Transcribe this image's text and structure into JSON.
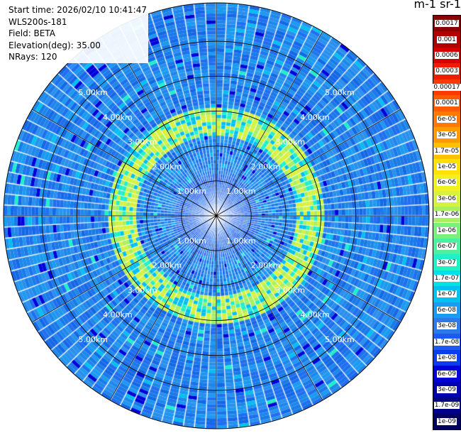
{
  "info": {
    "start_time": "Start time: 2026/02/10 10:41:47",
    "instrument": "WLS200s-181",
    "field": "Field: BETA",
    "elevation": "Elevation(deg): 35.00",
    "nrays": "NRays: 120"
  },
  "colorbar": {
    "units_label": "m-1 sr-1",
    "labels": [
      "0.0017",
      "0.001",
      "0.0006",
      "0.0003",
      "0.00017",
      "0.0001",
      "6e-05",
      "3e-05",
      "1.7e-05",
      "1e-05",
      "6e-06",
      "3e-06",
      "1.7e-06",
      "1e-06",
      "6e-07",
      "3e-07",
      "1.7e-07",
      "1e-07",
      "6e-08",
      "3e-08",
      "1.7e-08",
      "1e-08",
      "6e-09",
      "3e-09",
      "1.7e-09",
      "1e-09"
    ],
    "colors": [
      "#8b0000",
      "#b00000",
      "#d40000",
      "#ee1c00",
      "#ff3a00",
      "#ff5a00",
      "#ff7a00",
      "#ff9a00",
      "#ffc000",
      "#ffe000",
      "#f2f020",
      "#d6f23c",
      "#a8f060",
      "#7af07a",
      "#4cf0a0",
      "#20f0c8",
      "#00e0e8",
      "#00c0f0",
      "#1a9af0",
      "#2a7ae8",
      "#1e5af0",
      "#0a3cf0",
      "#0000d8",
      "#0000b0",
      "#000088",
      "#000060"
    ]
  },
  "chart_data": {
    "type": "heatmap",
    "subtype": "ppi_scan",
    "n_rays": 120,
    "elevation_deg": 35.0,
    "range_rings_km": [
      1.0,
      2.0,
      3.0,
      4.0,
      5.0
    ],
    "ring_labels": [
      "1.00km",
      "2.00km",
      "3.00km",
      "4.00km",
      "5.00km"
    ],
    "max_range_km": 6.1,
    "field": "BETA",
    "scale": "log",
    "value_min": 1e-09,
    "value_max": 0.0017,
    "background_level": 6e-08,
    "enhanced_ring_km": [
      2.3,
      3.1
    ],
    "enhanced_level": 3e-06,
    "grid": true
  }
}
